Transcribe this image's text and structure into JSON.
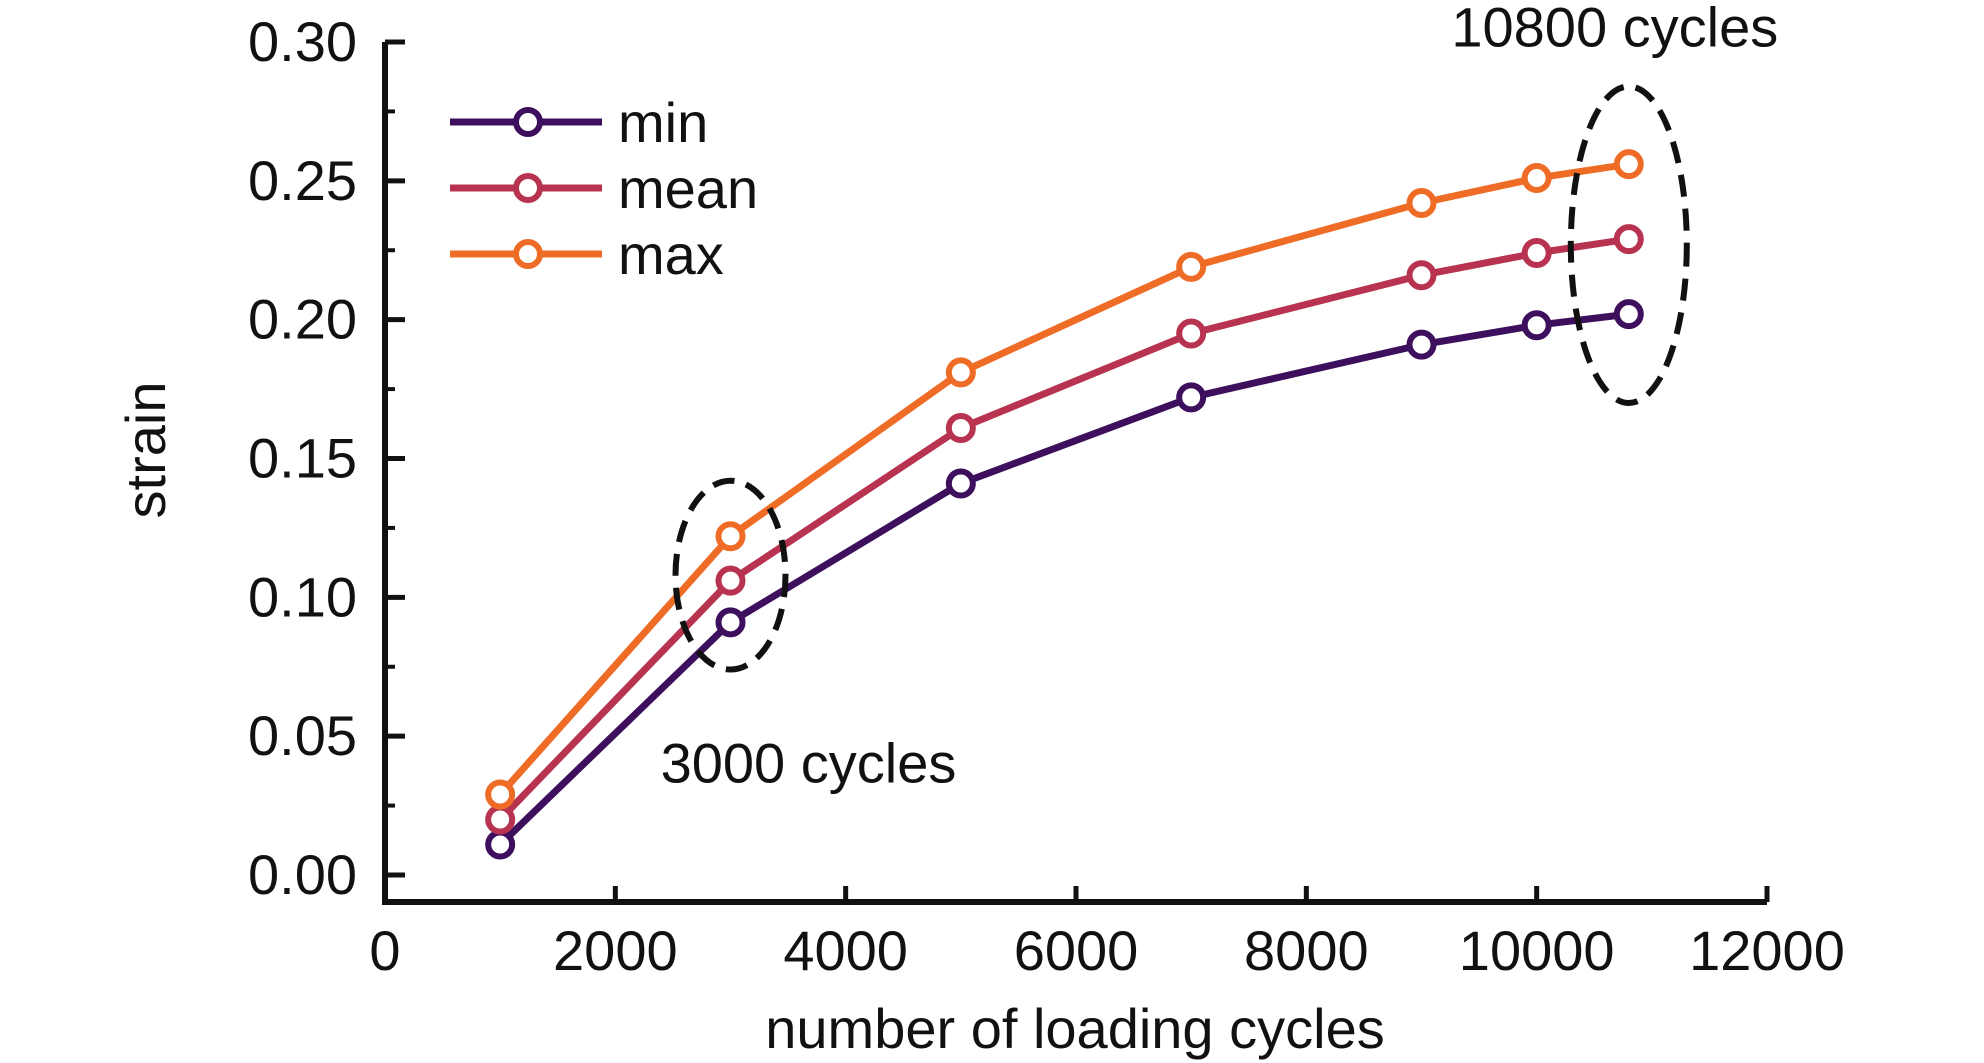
{
  "chart_data": {
    "type": "line",
    "xlabel": "number of loading cycles",
    "ylabel": "strain",
    "xlim": [
      0,
      12000
    ],
    "ylim": [
      0.0,
      0.3
    ],
    "x_ticks": [
      "0",
      "2000",
      "4000",
      "6000",
      "8000",
      "10000",
      "12000"
    ],
    "y_ticks": [
      "0.00",
      "0.05",
      "0.10",
      "0.15",
      "0.20",
      "0.25",
      "0.30"
    ],
    "legend_position": "top-left",
    "grid": false,
    "x": [
      1000,
      3000,
      5000,
      7000,
      9000,
      10000,
      10800
    ],
    "series": [
      {
        "name": "min",
        "color": "#3d0f5c",
        "values": [
          0.011,
          0.091,
          0.141,
          0.172,
          0.191,
          0.198,
          0.202
        ]
      },
      {
        "name": "mean",
        "color": "#b8334f",
        "values": [
          0.02,
          0.106,
          0.161,
          0.195,
          0.216,
          0.224,
          0.229
        ]
      },
      {
        "name": "max",
        "color": "#ef6c26",
        "values": [
          0.029,
          0.122,
          0.181,
          0.219,
          0.242,
          0.251,
          0.256
        ]
      }
    ],
    "annotations": [
      {
        "text": "3000 cycles",
        "x": 3000,
        "y_range": [
          0.074,
          0.142
        ]
      },
      {
        "text": "10800 cycles",
        "x": 10800,
        "y_range": [
          0.17,
          0.284
        ]
      }
    ]
  }
}
